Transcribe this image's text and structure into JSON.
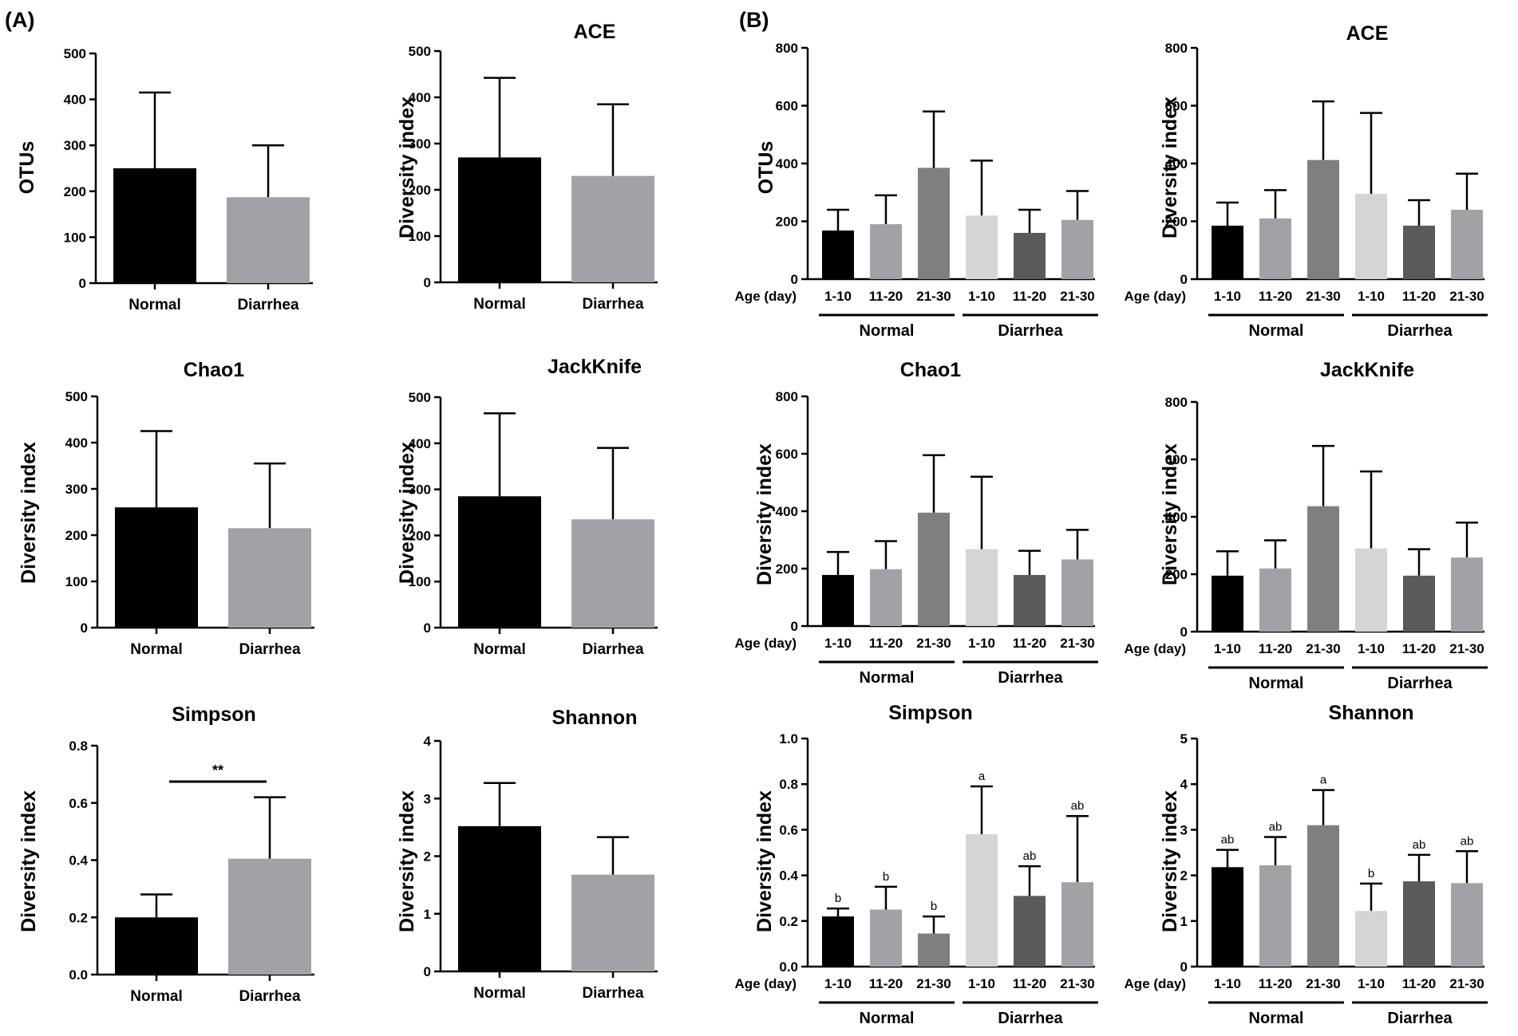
{
  "panels": [
    {
      "label": "(A)"
    },
    {
      "label": "(B)"
    }
  ],
  "colors": {
    "normal": "#000000",
    "diarrhea": "#a2a2a6",
    "normal_1_10": "#000000",
    "normal_11_20": "#a2a2a6",
    "normal_21_30": "#7f7f7f",
    "diarrhea_1_10": "#d5d5d5",
    "diarrhea_11_20": "#5a5a5a",
    "diarrhea_21_30": "#a2a2a6"
  },
  "chart_data": [
    {
      "type": "bar",
      "panel": "A",
      "title": "",
      "ylabel": "OTUs",
      "ylim": [
        0,
        500
      ],
      "yticks": [
        "0",
        "100",
        "200",
        "300",
        "400",
        "500"
      ],
      "categories": [
        "Normal",
        "Diarrhea"
      ],
      "values": [
        250,
        187
      ],
      "errors": [
        165,
        113
      ]
    },
    {
      "type": "bar",
      "panel": "A",
      "title": "ACE",
      "ylabel": "Diversity index",
      "ylim": [
        0,
        500
      ],
      "yticks": [
        "0",
        "100",
        "200",
        "300",
        "400",
        "500"
      ],
      "categories": [
        "Normal",
        "Diarrhea"
      ],
      "values": [
        270,
        230
      ],
      "errors": [
        172,
        155
      ]
    },
    {
      "type": "bar",
      "panel": "A",
      "title": "Chao1",
      "ylabel": "Diversity index",
      "ylim": [
        0,
        500
      ],
      "yticks": [
        "0",
        "100",
        "200",
        "300",
        "400",
        "500"
      ],
      "categories": [
        "Normal",
        "Diarrhea"
      ],
      "values": [
        260,
        215
      ],
      "errors": [
        165,
        140
      ]
    },
    {
      "type": "bar",
      "panel": "A",
      "title": "JackKnife",
      "ylabel": "Diversity index",
      "ylim": [
        0,
        500
      ],
      "yticks": [
        "0",
        "100",
        "200",
        "300",
        "400",
        "500"
      ],
      "categories": [
        "Normal",
        "Diarrhea"
      ],
      "values": [
        285,
        235
      ],
      "errors": [
        180,
        155
      ]
    },
    {
      "type": "bar",
      "panel": "A",
      "title": "Simpson",
      "ylabel": "Diversity index",
      "ylim": [
        0,
        0.8
      ],
      "yticks": [
        "0.0",
        "0.2",
        "0.4",
        "0.6",
        "0.8"
      ],
      "categories": [
        "Normal",
        "Diarrhea"
      ],
      "values": [
        0.2,
        0.405
      ],
      "errors": [
        0.08,
        0.215
      ],
      "significance": "**"
    },
    {
      "type": "bar",
      "panel": "A",
      "title": "Shannon",
      "ylabel": "Diversity index",
      "ylim": [
        0,
        4
      ],
      "yticks": [
        "0",
        "1",
        "2",
        "3",
        "4"
      ],
      "categories": [
        "Normal",
        "Diarrhea"
      ],
      "values": [
        2.52,
        1.68
      ],
      "errors": [
        0.75,
        0.65
      ]
    },
    {
      "type": "bar",
      "panel": "B",
      "title": "",
      "ylabel": "OTUs",
      "ylim": [
        0,
        800
      ],
      "yticks": [
        "0",
        "200",
        "400",
        "600",
        "800"
      ],
      "xlabel": "Age (day)",
      "categories": [
        "1-10",
        "11-20",
        "21-30",
        "1-10",
        "11-20",
        "21-30"
      ],
      "groups": [
        "Normal",
        "Diarrhea"
      ],
      "values": [
        168,
        190,
        385,
        220,
        160,
        205
      ],
      "errors": [
        72,
        100,
        195,
        190,
        80,
        100
      ]
    },
    {
      "type": "bar",
      "panel": "B",
      "title": "ACE",
      "ylabel": "Diversity index",
      "ylim": [
        0,
        800
      ],
      "yticks": [
        "0",
        "200",
        "400",
        "600",
        "800"
      ],
      "xlabel": "Age (day)",
      "categories": [
        "1-10",
        "11-20",
        "21-30",
        "1-10",
        "11-20",
        "21-30"
      ],
      "groups": [
        "Normal",
        "Diarrhea"
      ],
      "values": [
        185,
        210,
        412,
        295,
        185,
        240
      ],
      "errors": [
        80,
        98,
        203,
        280,
        88,
        125
      ]
    },
    {
      "type": "bar",
      "panel": "B",
      "title": "Chao1",
      "ylabel": "Diversity index",
      "ylim": [
        0,
        800
      ],
      "yticks": [
        "0",
        "200",
        "400",
        "600",
        "800"
      ],
      "xlabel": "Age (day)",
      "categories": [
        "1-10",
        "11-20",
        "21-30",
        "1-10",
        "11-20",
        "21-30"
      ],
      "groups": [
        "Normal",
        "Diarrhea"
      ],
      "values": [
        178,
        198,
        395,
        268,
        178,
        232
      ],
      "errors": [
        80,
        98,
        200,
        252,
        84,
        103
      ]
    },
    {
      "type": "bar",
      "panel": "B",
      "title": "JackKnife",
      "ylabel": "Diversity index",
      "ylim": [
        0,
        800
      ],
      "yticks": [
        "0",
        "200",
        "400",
        "600",
        "800"
      ],
      "xlabel": "Age (day)",
      "categories": [
        "1-10",
        "11-20",
        "21-30",
        "1-10",
        "11-20",
        "21-30"
      ],
      "groups": [
        "Normal",
        "Diarrhea"
      ],
      "values": [
        195,
        220,
        437,
        290,
        195,
        258
      ],
      "errors": [
        85,
        98,
        210,
        268,
        92,
        122
      ]
    },
    {
      "type": "bar",
      "panel": "B",
      "title": "Simpson",
      "ylabel": "Diversity index",
      "ylim": [
        0,
        1.0
      ],
      "yticks": [
        "0.0",
        "0.2",
        "0.4",
        "0.6",
        "0.8",
        "1.0"
      ],
      "xlabel": "Age (day)",
      "categories": [
        "1-10",
        "11-20",
        "21-30",
        "1-10",
        "11-20",
        "21-30"
      ],
      "groups": [
        "Normal",
        "Diarrhea"
      ],
      "values": [
        0.22,
        0.25,
        0.145,
        0.58,
        0.31,
        0.37
      ],
      "errors": [
        0.035,
        0.1,
        0.075,
        0.21,
        0.13,
        0.29
      ],
      "annotations": [
        "b",
        "b",
        "b",
        "a",
        "ab",
        "ab"
      ]
    },
    {
      "type": "bar",
      "panel": "B",
      "title": "Shannon",
      "ylabel": "Diversity index",
      "ylim": [
        0,
        5
      ],
      "yticks": [
        "0",
        "1",
        "2",
        "3",
        "4",
        "5"
      ],
      "xlabel": "Age (day)",
      "categories": [
        "1-10",
        "11-20",
        "21-30",
        "1-10",
        "11-20",
        "21-30"
      ],
      "groups": [
        "Normal",
        "Diarrhea"
      ],
      "values": [
        2.18,
        2.22,
        3.1,
        1.22,
        1.87,
        1.83
      ],
      "errors": [
        0.38,
        0.62,
        0.77,
        0.6,
        0.58,
        0.7
      ],
      "annotations": [
        "ab",
        "ab",
        "a",
        "b",
        "ab",
        "ab"
      ]
    }
  ]
}
